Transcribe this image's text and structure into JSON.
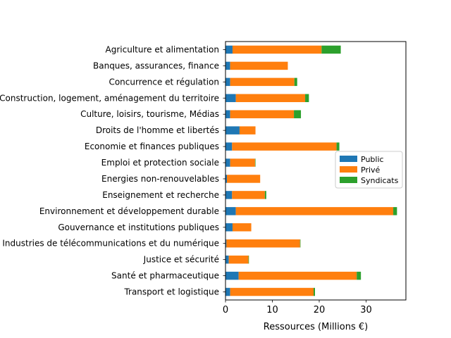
{
  "chart_data": {
    "type": "bar",
    "orientation": "horizontal",
    "stacked": true,
    "title": "",
    "xlabel": "Ressources (Millions €)",
    "ylabel": "",
    "xlim": [
      0,
      38.5
    ],
    "xticks": [
      0,
      10,
      20,
      30
    ],
    "grid": false,
    "legend_position": "center-right",
    "categories": [
      "Agriculture et alimentation",
      "Banques, assurances, finance",
      "Concurrence et régulation",
      "Construction, logement, aménagement du territoire",
      "Culture, loisirs, tourisme, Médias",
      "Droits de l'homme et libertés",
      "Economie et finances publiques",
      "Emploi et protection sociale",
      "Energies non-renouvelables",
      "Enseignement et recherche",
      "Environnement et développement durable",
      "Gouvernance et institutions publiques",
      "Industries de télécommunications et du numérique",
      "Justice et sécurité",
      "Santé et pharmaceutique",
      "Transport et logistique"
    ],
    "series": [
      {
        "name": "Public",
        "color": "#1f77b4",
        "values": [
          1.5,
          1.0,
          1.0,
          2.2,
          1.0,
          3.0,
          1.4,
          1.0,
          0.3,
          1.4,
          2.2,
          1.5,
          0.2,
          0.7,
          2.8,
          1.0
        ]
      },
      {
        "name": "Privé",
        "color": "#ff7f0e",
        "values": [
          19.0,
          12.3,
          13.7,
          14.8,
          13.6,
          3.4,
          22.3,
          5.3,
          7.1,
          7.0,
          33.6,
          4.0,
          15.7,
          4.2,
          25.2,
          17.8
        ]
      },
      {
        "name": "Syndicats",
        "color": "#2ca02c",
        "values": [
          4.1,
          0.0,
          0.6,
          0.8,
          1.5,
          0.0,
          0.6,
          0.1,
          0.0,
          0.3,
          0.8,
          0.0,
          0.1,
          0.1,
          0.9,
          0.3
        ]
      }
    ]
  }
}
